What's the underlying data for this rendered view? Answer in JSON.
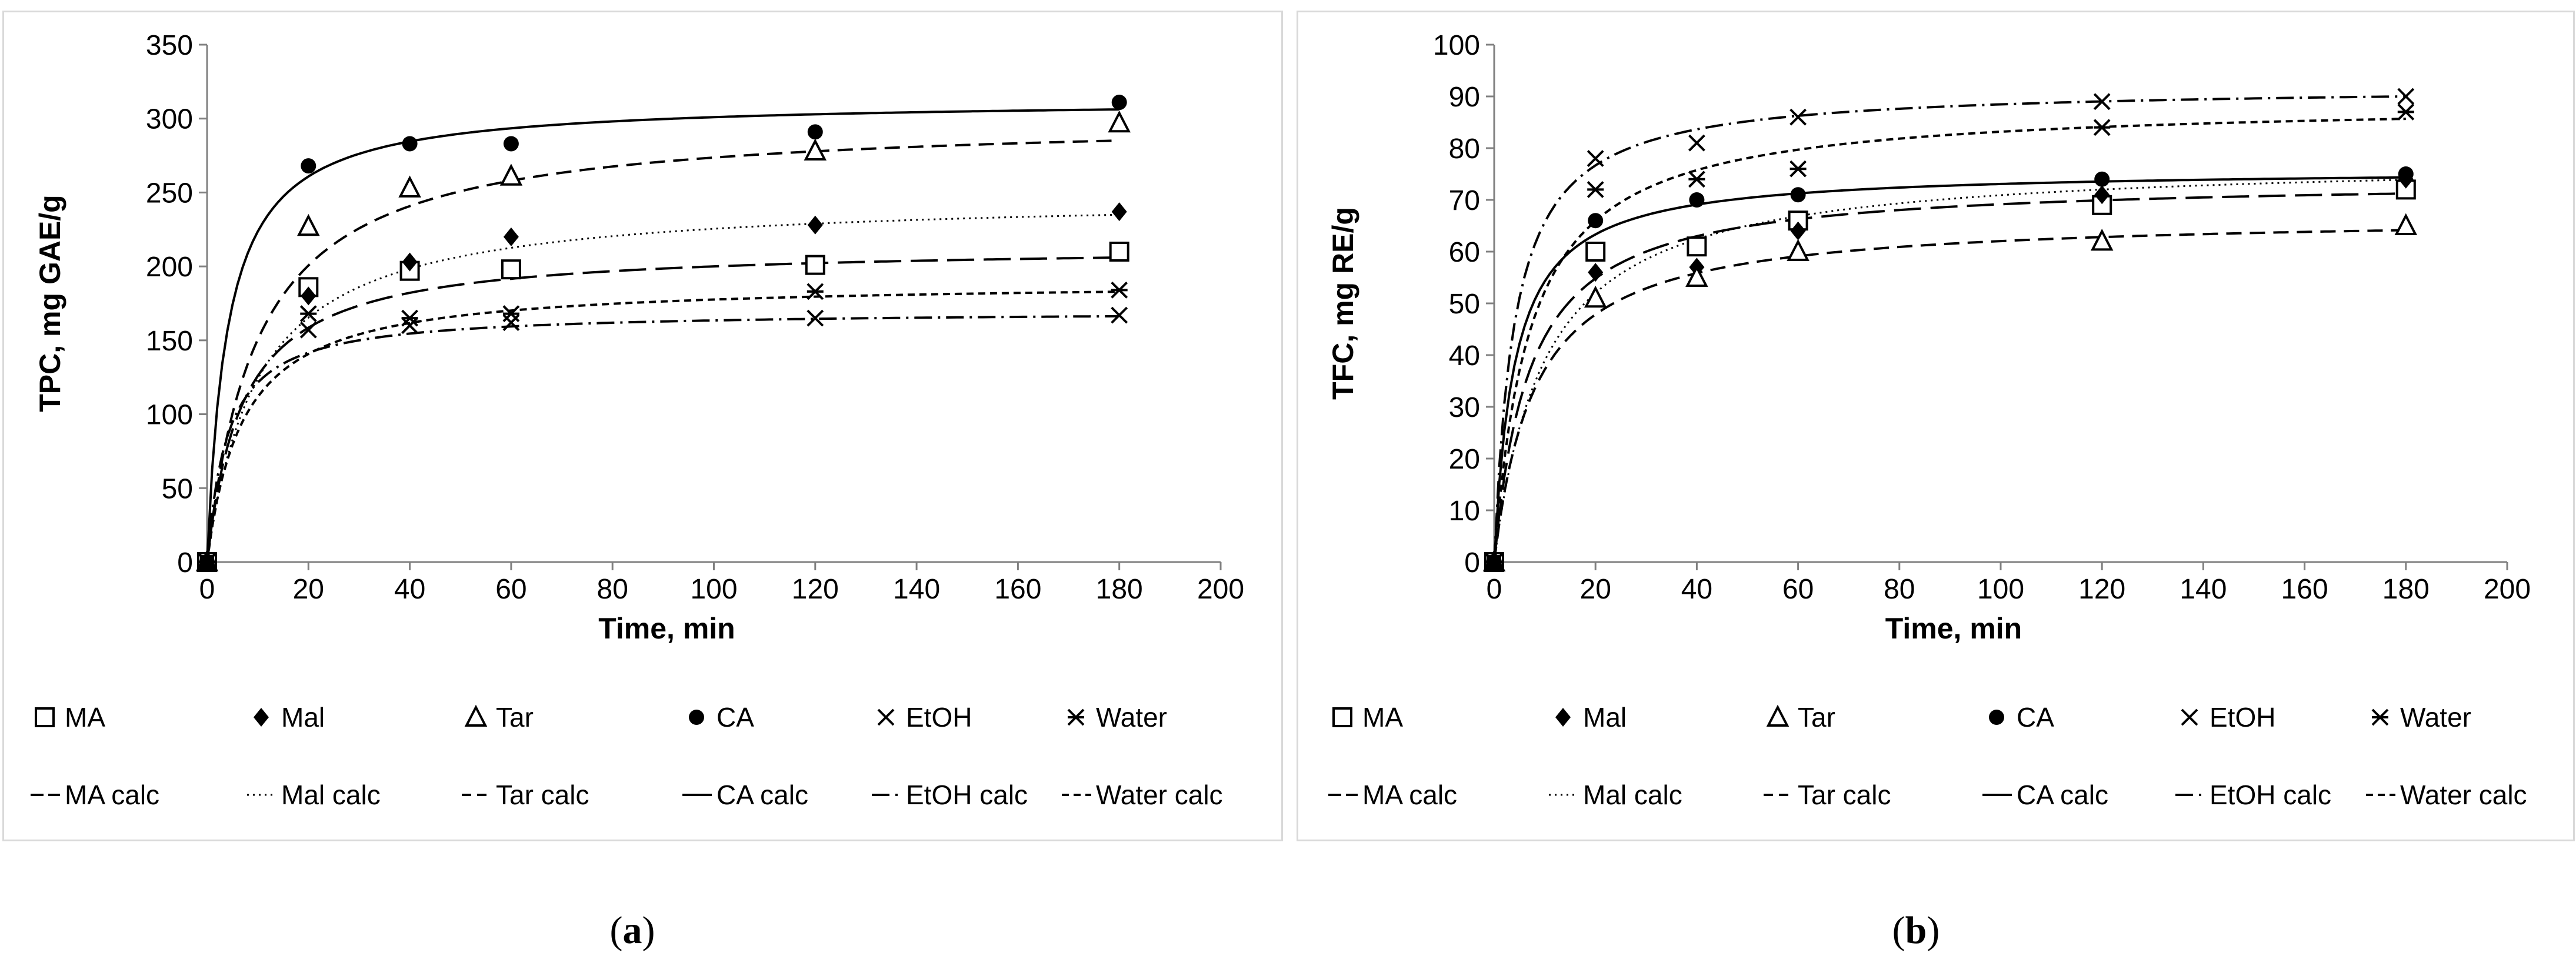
{
  "chart_data": [
    {
      "type": "scatter",
      "panel_label": "a",
      "xlabel": "Time, min",
      "ylabel": "TPC, mg GAE/g",
      "xlim": [
        0,
        200
      ],
      "ylim": [
        0,
        350
      ],
      "x_ticks": [
        0,
        20,
        40,
        60,
        80,
        100,
        120,
        140,
        160,
        180,
        200
      ],
      "y_ticks": [
        0,
        50,
        100,
        150,
        200,
        250,
        300,
        350
      ],
      "x": [
        0,
        20,
        40,
        60,
        120,
        180
      ],
      "series": [
        {
          "name": "MA",
          "marker": "square",
          "values": [
            0,
            186,
            197,
            198,
            201,
            210
          ]
        },
        {
          "name": "Mal",
          "marker": "diamond",
          "values": [
            0,
            180,
            203,
            220,
            228,
            237
          ]
        },
        {
          "name": "Tar",
          "marker": "triangle",
          "values": [
            0,
            227,
            253,
            261,
            278,
            297
          ]
        },
        {
          "name": "CA",
          "marker": "circle",
          "values": [
            0,
            268,
            283,
            283,
            291,
            311
          ]
        },
        {
          "name": "EtOH",
          "marker": "x",
          "values": [
            0,
            157,
            160,
            162,
            165,
            167
          ]
        },
        {
          "name": "Water",
          "marker": "star",
          "values": [
            0,
            168,
            165,
            168,
            183,
            184
          ]
        }
      ],
      "fits": [
        {
          "name": "MA calc",
          "dash": "longdash",
          "max": 214,
          "k": 7
        },
        {
          "name": "Mal calc",
          "dash": "dotted",
          "max": 248,
          "k": 10
        },
        {
          "name": "Tar calc",
          "dash": "dash",
          "max": 301,
          "k": 10
        },
        {
          "name": "CA calc",
          "dash": "solid",
          "max": 313,
          "k": 4
        },
        {
          "name": "EtOH calc",
          "dash": "dashdot",
          "max": 170,
          "k": 4
        },
        {
          "name": "Water calc",
          "dash": "shortdash",
          "max": 190,
          "k": 7
        }
      ]
    },
    {
      "type": "scatter",
      "panel_label": "b",
      "xlabel": "Time, min",
      "ylabel": "TFC, mg RE/g",
      "xlim": [
        0,
        200
      ],
      "ylim": [
        0,
        100
      ],
      "x_ticks": [
        0,
        20,
        40,
        60,
        80,
        100,
        120,
        140,
        160,
        180,
        200
      ],
      "y_ticks": [
        0,
        10,
        20,
        30,
        40,
        50,
        60,
        70,
        80,
        90,
        100
      ],
      "x": [
        0,
        20,
        40,
        60,
        120,
        180
      ],
      "series": [
        {
          "name": "MA",
          "marker": "square",
          "values": [
            0,
            60,
            61,
            66,
            69,
            72
          ]
        },
        {
          "name": "Mal",
          "marker": "diamond",
          "values": [
            0,
            56,
            57,
            64,
            71,
            74
          ]
        },
        {
          "name": "Tar",
          "marker": "triangle",
          "values": [
            0,
            51,
            55,
            60,
            62,
            65
          ]
        },
        {
          "name": "CA",
          "marker": "circle",
          "values": [
            0,
            66,
            70,
            71,
            74,
            75
          ]
        },
        {
          "name": "EtOH",
          "marker": "x",
          "values": [
            0,
            78,
            81,
            86,
            89,
            90
          ]
        },
        {
          "name": "Water",
          "marker": "star",
          "values": [
            0,
            72,
            74,
            76,
            84,
            87
          ]
        }
      ],
      "fits": [
        {
          "name": "MA calc",
          "dash": "longdash",
          "max": 74,
          "k": 7
        },
        {
          "name": "Mal calc",
          "dash": "dotted",
          "max": 78,
          "k": 10
        },
        {
          "name": "Tar calc",
          "dash": "dash",
          "max": 67,
          "k": 8
        },
        {
          "name": "CA calc",
          "dash": "solid",
          "max": 76,
          "k": 4
        },
        {
          "name": "EtOH calc",
          "dash": "dashdot",
          "max": 92,
          "k": 4
        },
        {
          "name": "Water calc",
          "dash": "shortdash",
          "max": 89,
          "k": 7
        }
      ]
    }
  ]
}
